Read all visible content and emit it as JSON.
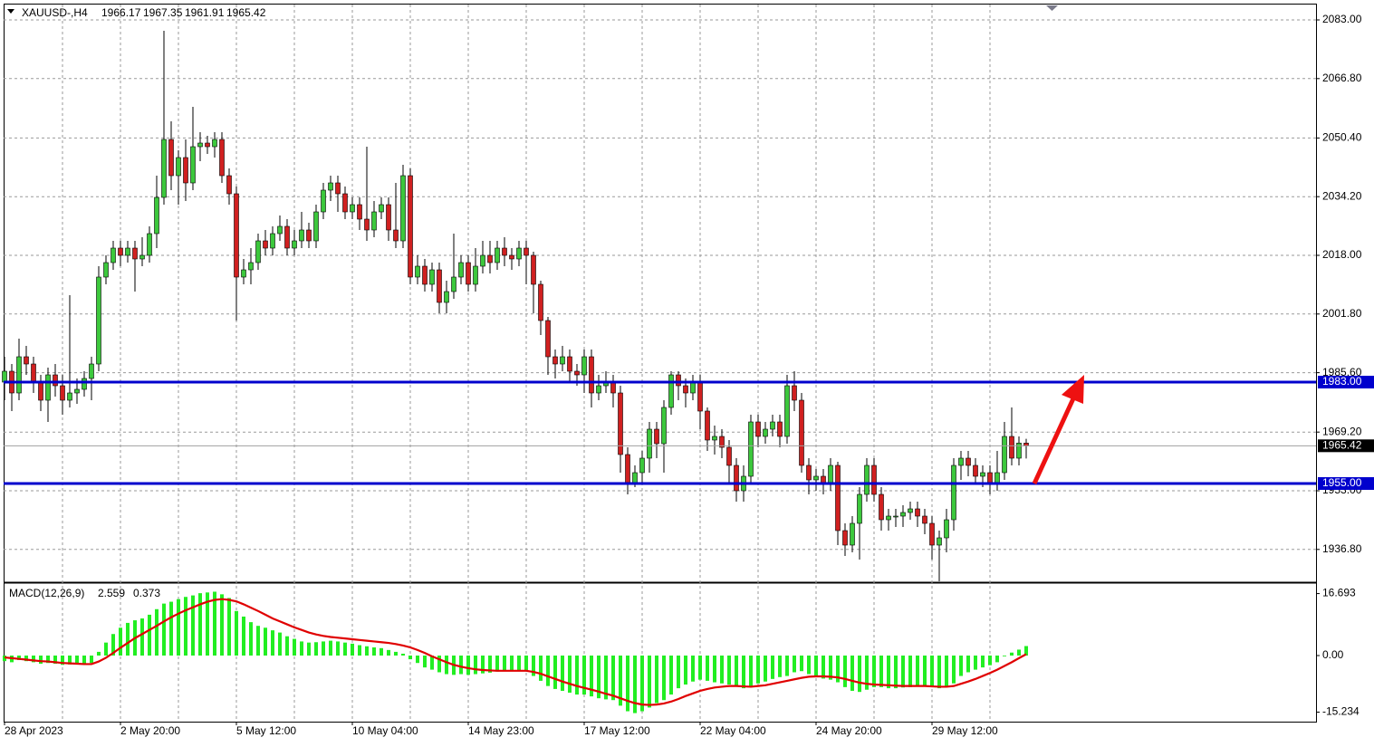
{
  "chart_data": [
    {
      "type": "candlestick",
      "title": "XAUUSD-,H4",
      "categories": [
        "28 Apr 2023",
        null,
        null,
        null,
        null,
        null,
        null,
        null,
        null,
        null,
        null,
        null,
        null,
        null,
        null,
        null,
        "2 May 20:00",
        null,
        null,
        null,
        null,
        null,
        null,
        null,
        null,
        null,
        null,
        null,
        null,
        null,
        null,
        null,
        "5 May 12:00",
        null,
        null,
        null,
        null,
        null,
        null,
        null,
        null,
        null,
        null,
        null,
        null,
        null,
        null,
        null,
        "10 May 04:00",
        null,
        null,
        null,
        null,
        null,
        null,
        null,
        null,
        null,
        null,
        null,
        null,
        null,
        null,
        null,
        "14 May 23:00",
        null,
        null,
        null,
        null,
        null,
        null,
        null,
        null,
        null,
        null,
        null,
        null,
        null,
        null,
        null,
        "17 May 12:00",
        null,
        null,
        null,
        null,
        null,
        null,
        null,
        null,
        null,
        null,
        null,
        null,
        null,
        null,
        null,
        "22 May 04:00",
        null,
        null,
        null,
        null,
        null,
        null,
        null,
        null,
        null,
        null,
        null,
        null,
        null,
        null,
        null,
        "24 May 20:00",
        null,
        null,
        null,
        null,
        null,
        null,
        null,
        null,
        null,
        null,
        null,
        null,
        null,
        null,
        null,
        "29 May 12:00",
        null,
        null,
        null,
        null,
        null,
        null,
        null,
        null,
        null,
        null,
        null,
        null,
        null
      ],
      "open": [
        1983,
        1986,
        1980,
        1990,
        1988,
        1983,
        1978,
        1985,
        1982,
        1978,
        1980,
        1981,
        1984,
        1988,
        2012,
        2016,
        2020,
        2018,
        2020,
        2017,
        2018,
        2024,
        2034,
        2050,
        2040,
        2045,
        2038,
        2048,
        2049,
        2048,
        2050,
        2040,
        2035,
        2012,
        2014,
        2016,
        2022,
        2020,
        2024,
        2026,
        2020,
        2022,
        2025,
        2022,
        2030,
        2036,
        2038,
        2035,
        2030,
        2032,
        2028,
        2025,
        2030,
        2032,
        2025,
        2022,
        2040,
        2012,
        2015,
        2010,
        2014,
        2005,
        2008,
        2012,
        2016,
        2010,
        2015,
        2018,
        2016,
        2020,
        2018,
        2017,
        2020,
        2018,
        2010,
        2000,
        1990,
        1988,
        1990,
        1986,
        1985,
        1990,
        1980,
        1982,
        1983,
        1980,
        1963,
        1955,
        1958,
        1962,
        1970,
        1966,
        1976,
        1985,
        1982,
        1980,
        1983,
        1975,
        1967,
        1968,
        1965,
        1960,
        1953,
        1957,
        1972,
        1968,
        1970,
        1972,
        1968,
        1982,
        1978,
        1960,
        1956,
        1957,
        1955,
        1960,
        1942,
        1938,
        1944,
        1952,
        1960,
        1952,
        1945,
        1946,
        1946,
        1947,
        1948,
        1946,
        1944,
        1938,
        1940,
        1945,
        1960,
        1962,
        1960,
        1957,
        1958,
        1955,
        1958,
        1968,
        1962,
        1966.17
      ],
      "high": [
        1990,
        1988,
        1995,
        1993,
        1990,
        1985,
        1987,
        1988,
        1985,
        2007,
        1984,
        1986,
        1990,
        2015,
        2018,
        2022,
        2022,
        2022,
        2022,
        2023,
        2026,
        2040,
        2080,
        2055,
        2047,
        2050,
        2059,
        2052,
        2051,
        2052,
        2052,
        2042,
        2037,
        2017,
        2020,
        2024,
        2025,
        2026,
        2029,
        2028,
        2025,
        2030,
        2027,
        2032,
        2038,
        2040,
        2040,
        2037,
        2034,
        2034,
        2048,
        2033,
        2034,
        2034,
        2038,
        2043,
        2042,
        2018,
        2017,
        2016,
        2016,
        2011,
        2024,
        2018,
        2018,
        2020,
        2022,
        2022,
        2022,
        2023,
        2020,
        2022,
        2022,
        2019,
        2011,
        2001,
        1992,
        1993,
        1992,
        1988,
        1992,
        1992,
        1985,
        1986,
        1985,
        1982,
        1965,
        1960,
        1964,
        1972,
        1972,
        1978,
        1986,
        1986,
        1984,
        1985,
        1985,
        1976,
        1971,
        1970,
        1967,
        1962,
        1960,
        1974,
        1974,
        1972,
        1974,
        1974,
        1985,
        1986,
        1980,
        1962,
        1959,
        1959,
        1962,
        1961,
        1944,
        1946,
        1954,
        1962,
        1962,
        1954,
        1948,
        1948,
        1949,
        1950,
        1950,
        1948,
        1946,
        1942,
        1948,
        1962,
        1964,
        1964,
        1962,
        1960,
        1960,
        1964,
        1972,
        1976,
        1968,
        1967.35
      ],
      "low": [
        1978,
        1975,
        1978,
        1985,
        1980,
        1975,
        1972,
        1979,
        1974,
        1976,
        1977,
        1979,
        1978,
        1986,
        2010,
        2014,
        2015,
        2016,
        2008,
        2015,
        2016,
        2020,
        2032,
        2036,
        2032,
        2033,
        2036,
        2044,
        2046,
        2045,
        2038,
        2032,
        2000,
        2010,
        2010,
        2014,
        2018,
        2018,
        2022,
        2018,
        2018,
        2020,
        2020,
        2020,
        2028,
        2033,
        2030,
        2028,
        2028,
        2025,
        2022,
        2023,
        2028,
        2022,
        2020,
        2020,
        2010,
        2010,
        2008,
        2008,
        2002,
        2002,
        2006,
        2010,
        2008,
        2008,
        2013,
        2013,
        2014,
        2015,
        2014,
        2015,
        2010,
        2002,
        1996,
        1985,
        1984,
        1986,
        1983,
        1982,
        1980,
        1976,
        1978,
        1980,
        1976,
        1958,
        1952,
        1954,
        1955,
        1958,
        1962,
        1958,
        1974,
        1978,
        1976,
        1978,
        1970,
        1964,
        1963,
        1962,
        1955,
        1950,
        1950,
        1955,
        1965,
        1966,
        1968,
        1965,
        1966,
        1975,
        1958,
        1952,
        1953,
        1952,
        1953,
        1938,
        1935,
        1936,
        1934,
        1950,
        1950,
        1942,
        1942,
        1943,
        1943,
        1945,
        1943,
        1941,
        1934,
        1928,
        1936,
        1942,
        1956,
        1957,
        1955,
        1954,
        1952,
        1953,
        1956,
        1960,
        1960,
        1961.91
      ],
      "close": [
        1986,
        1980,
        1990,
        1988,
        1983,
        1978,
        1985,
        1982,
        1978,
        1980,
        1981,
        1984,
        1988,
        2012,
        2016,
        2020,
        2018,
        2020,
        2017,
        2018,
        2024,
        2034,
        2050,
        2040,
        2045,
        2038,
        2048,
        2049,
        2048,
        2050,
        2040,
        2035,
        2012,
        2014,
        2016,
        2022,
        2020,
        2024,
        2026,
        2020,
        2022,
        2025,
        2022,
        2030,
        2036,
        2038,
        2035,
        2030,
        2032,
        2028,
        2025,
        2030,
        2032,
        2025,
        2022,
        2040,
        2012,
        2015,
        2010,
        2014,
        2005,
        2008,
        2012,
        2016,
        2010,
        2015,
        2018,
        2016,
        2020,
        2018,
        2017,
        2020,
        2018,
        2010,
        2000,
        1990,
        1988,
        1990,
        1986,
        1985,
        1990,
        1980,
        1982,
        1983,
        1980,
        1963,
        1955,
        1958,
        1962,
        1970,
        1966,
        1976,
        1985,
        1982,
        1980,
        1983,
        1975,
        1967,
        1968,
        1965,
        1960,
        1953,
        1957,
        1972,
        1968,
        1970,
        1972,
        1968,
        1982,
        1978,
        1960,
        1956,
        1957,
        1955,
        1960,
        1942,
        1938,
        1944,
        1952,
        1960,
        1952,
        1945,
        1946,
        1946,
        1947,
        1948,
        1946,
        1944,
        1938,
        1940,
        1945,
        1960,
        1962,
        1960,
        1957,
        1958,
        1955,
        1958,
        1968,
        1962,
        1966.17,
        1965.42
      ],
      "up_color": "#3cc83c",
      "down_color": "#d02020",
      "ylim": [
        1928,
        2087.25
      ],
      "yticks": [
        {
          "value": 2083,
          "label": "2083.00"
        },
        {
          "value": 2066.8,
          "label": "2066.80"
        },
        {
          "value": 2050.4,
          "label": "2050.40"
        },
        {
          "value": 2034.2,
          "label": "2034.20"
        },
        {
          "value": 2018,
          "label": "2018.00"
        },
        {
          "value": 2001.8,
          "label": "2001.80"
        },
        {
          "value": 1985.6,
          "label": "1985.60"
        },
        {
          "value": 1969.2,
          "label": "1969.20"
        },
        {
          "value": 1953,
          "label": "1953.00"
        },
        {
          "value": 1936.8,
          "label": "1936.80"
        }
      ],
      "levels": [
        {
          "value": 1983,
          "label": "1983.00"
        },
        {
          "value": 1955,
          "label": "1955.00"
        }
      ],
      "level_color": "#0000cd",
      "grid": true
    },
    {
      "type": "macd",
      "title": "MACD(12,26,9)",
      "histogram": {
        "color": "#22ee22",
        "values": [
          -1.5,
          -1.8,
          -1.2,
          -1.5,
          -1.8,
          -2.2,
          -2.0,
          -2.2,
          -2.5,
          -2.4,
          -2.3,
          -2.2,
          -2.0,
          1.0,
          3.5,
          5.8,
          7.5,
          8.8,
          9.5,
          10.0,
          11.0,
          12.5,
          14.0,
          14.5,
          15.2,
          15.8,
          16.2,
          16.8,
          17.0,
          17.2,
          16.5,
          15.5,
          12.0,
          10.5,
          9.0,
          8.0,
          7.5,
          6.8,
          6.2,
          5.2,
          4.5,
          3.8,
          3.5,
          3.6,
          3.8,
          4.0,
          3.8,
          3.5,
          3.2,
          2.8,
          2.5,
          2.2,
          2.0,
          1.5,
          1.0,
          0.5,
          -1.0,
          -2.0,
          -3.2,
          -3.8,
          -4.5,
          -5.0,
          -5.2,
          -5.0,
          -5.2,
          -5.0,
          -4.8,
          -4.6,
          -4.3,
          -4.2,
          -4.0,
          -4.0,
          -4.2,
          -5.5,
          -6.8,
          -8.2,
          -9.0,
          -9.5,
          -10.0,
          -10.5,
          -10.5,
          -11.0,
          -11.5,
          -11.8,
          -12.0,
          -13.5,
          -15.0,
          -15.5,
          -15.0,
          -14.0,
          -12.8,
          -12.0,
          -10.5,
          -8.8,
          -7.8,
          -7.0,
          -6.5,
          -6.8,
          -7.2,
          -7.5,
          -7.8,
          -8.3,
          -8.8,
          -8.5,
          -7.5,
          -7.0,
          -6.3,
          -5.8,
          -5.5,
          -4.5,
          -4.2,
          -5.0,
          -5.8,
          -6.2,
          -6.5,
          -7.2,
          -8.5,
          -9.5,
          -9.8,
          -9.2,
          -8.5,
          -8.5,
          -8.8,
          -8.8,
          -8.6,
          -8.5,
          -8.2,
          -8.2,
          -8.5,
          -8.8,
          -8.5,
          -7.5,
          -5.5,
          -4.5,
          -3.8,
          -3.2,
          -2.6,
          -1.8,
          -0.2,
          0.8,
          1.6,
          2.559
        ]
      },
      "signal": {
        "color": "#e00000",
        "values": [
          -0.5,
          -0.7,
          -0.9,
          -1.1,
          -1.3,
          -1.5,
          -1.6,
          -1.8,
          -2.0,
          -2.1,
          -2.2,
          -2.3,
          -2.3,
          -1.6,
          -0.6,
          0.7,
          2.1,
          3.4,
          4.7,
          5.8,
          6.9,
          8.0,
          9.2,
          10.3,
          11.3,
          12.2,
          13.0,
          13.8,
          14.5,
          15.0,
          15.2,
          15.0,
          14.6,
          13.8,
          12.9,
          12.0,
          11.0,
          10.0,
          9.2,
          8.4,
          7.6,
          6.9,
          6.2,
          5.7,
          5.3,
          5.0,
          4.8,
          4.6,
          4.4,
          4.2,
          4.0,
          3.8,
          3.6,
          3.4,
          3.1,
          2.7,
          2.2,
          1.5,
          0.7,
          -0.2,
          -1.0,
          -1.8,
          -2.5,
          -3.0,
          -3.4,
          -3.7,
          -3.9,
          -4.0,
          -4.1,
          -4.1,
          -4.1,
          -4.1,
          -4.1,
          -4.4,
          -4.9,
          -5.6,
          -6.3,
          -7.0,
          -7.6,
          -8.2,
          -8.7,
          -9.2,
          -9.7,
          -10.3,
          -10.8,
          -11.5,
          -12.2,
          -12.8,
          -13.2,
          -13.3,
          -13.2,
          -12.9,
          -12.4,
          -11.7,
          -10.9,
          -10.2,
          -9.5,
          -9.0,
          -8.6,
          -8.4,
          -8.2,
          -8.2,
          -8.3,
          -8.4,
          -8.2,
          -8.0,
          -7.6,
          -7.2,
          -6.8,
          -6.4,
          -6.0,
          -5.7,
          -5.6,
          -5.6,
          -5.7,
          -5.9,
          -6.3,
          -6.8,
          -7.3,
          -7.6,
          -7.8,
          -7.9,
          -8.0,
          -8.1,
          -8.2,
          -8.2,
          -8.2,
          -8.2,
          -8.3,
          -8.4,
          -8.4,
          -8.2,
          -7.6,
          -7.0,
          -6.3,
          -5.5,
          -4.7,
          -3.8,
          -2.8,
          -1.8,
          -0.7,
          0.373
        ]
      },
      "ylim": [
        -17.8,
        19.27
      ],
      "yticks": [
        16.693,
        {
          "value": 0,
          "label": "0.00"
        },
        -15.234
      ]
    }
  ]
}
